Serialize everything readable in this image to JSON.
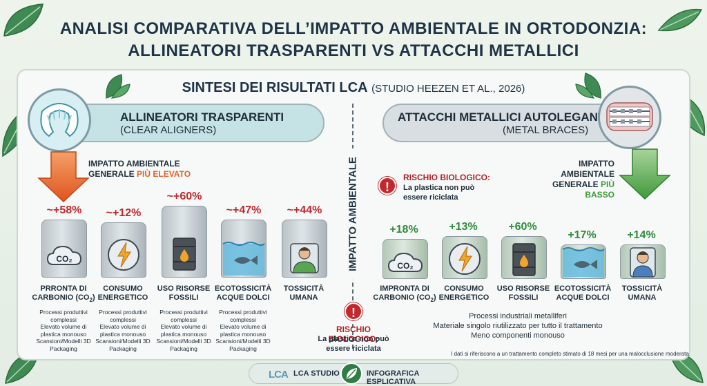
{
  "title": {
    "line1": "ANALISI COMPARATIVA DELL’IMPATTO AMBIENTALE IN ORTODONZIA:",
    "line2": "ALLINEATORI TRASPARENTI VS ATTACCHI METALLICI"
  },
  "sintesi": {
    "main": "SINTESI DEI RISULTATI LCA",
    "source": "(STUDIO HEEZEN ET AL., 2026)"
  },
  "left": {
    "title": "ALLINEATORI TRASPARENTI",
    "subtitle": "(CLEAR ALIGNERS)",
    "impact_line1": "IMPATTO AMBIENTALE",
    "impact_line2a": "GENERALE ",
    "impact_line2b": "PIÙ ELEVATO",
    "percents": [
      "~+58%",
      "~+12%",
      "~+60%",
      "~+47%",
      "~+44%"
    ],
    "labels": [
      [
        "PRRONTA DI",
        "CARBONIO (CO",
        ")"
      ],
      [
        "CONSUMO",
        "ENERGETICO"
      ],
      [
        "USO RISORSE",
        "FOSSILI"
      ],
      [
        "ECOTOSSICITÀ",
        "ACQUE DOLCI"
      ],
      [
        "TOSSICITÀ",
        "UMANA"
      ]
    ],
    "notes": [
      "Processi produttivi complessi",
      "Elevato volume di plastica monouso",
      "Scansioni/Modelli 3D",
      "Packaging"
    ]
  },
  "right": {
    "title": "ATTACCHI METALLICI AUTOLEGANTI",
    "subtitle": "(METAL BRACES)",
    "impact_line1": "IMPATTO AMBIENTALE",
    "impact_line2a": "GENERALE ",
    "impact_line2b": "PIÙ BASSO",
    "percents": [
      "+18%",
      "+13%",
      "+60%",
      "+17%",
      "+14%"
    ],
    "labels": [
      [
        "IMPRONTA DI",
        "CARBONIO (CO",
        ")"
      ],
      [
        "CONSUMO",
        "ENERGETICO"
      ],
      [
        "USO RISORSE",
        "FOSSILI"
      ],
      [
        "ECOTOSSICITÀ",
        "ACQUE DOLCI"
      ],
      [
        "TOSSICITÀ",
        "UMANA"
      ]
    ],
    "notes": [
      "Processi industriali metalliferi",
      "Materiale singolo riutilizzato per tutto il trattamento",
      "Meno componenti monouso"
    ]
  },
  "divider_label": "IMPATTO AMBIENTALE",
  "risk_top": {
    "title": "RISCHIO BIOLOGICO:",
    "line1": "La plastica non può",
    "line2": "essere riciclata"
  },
  "risk_bottom": {
    "title": "RISCHIO BIOLOGICO:",
    "line1": "La plastica non può",
    "line2": "essere riciclata"
  },
  "footnote": "I dati si riferiscono a un trattamento completo stimato di 18 mesi per una malocclusione moderata.",
  "footer": {
    "logo": "LCA",
    "studio": "LCA STUDIO",
    "info": "INFOGRAFICA ESPLICATIVA"
  },
  "icons": [
    "co2-cloud-icon",
    "lightning-icon",
    "oil-barrel-icon",
    "fish-water-icon",
    "person-icon",
    "warning-icon",
    "leaf-icon"
  ],
  "colors": {
    "high": "#e2612a",
    "low": "#3f9a3b",
    "risk": "#c3282d",
    "left_header": "#bfdde0",
    "right_header": "#d9dfe2"
  }
}
